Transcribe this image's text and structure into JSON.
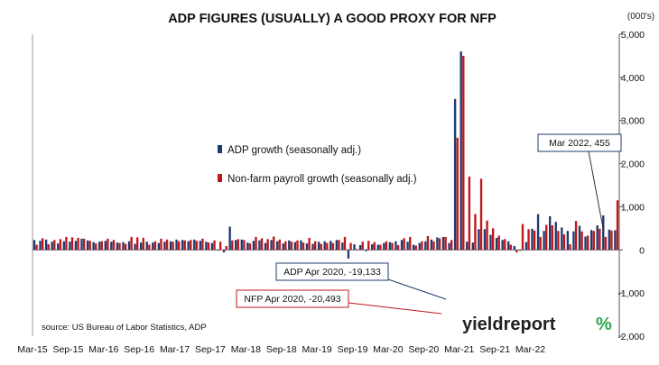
{
  "chart_data": {
    "type": "bar",
    "title": "ADP FIGURES (USUALLY) A GOOD PROXY FOR NFP",
    "y_unit_label": "(000's)",
    "ylim": [
      -2000,
      5000
    ],
    "y_ticks": [
      "-2,000",
      "-1,000",
      "0",
      "1,000",
      "2,000",
      "3,000",
      "4,000",
      "5,000"
    ],
    "y_tick_values": [
      -2000,
      -1000,
      0,
      1000,
      2000,
      3000,
      4000,
      5000
    ],
    "x_tick_labels": [
      "Mar-15",
      "Sep-15",
      "Mar-16",
      "Sep-16",
      "Mar-17",
      "Sep-17",
      "Mar-18",
      "Sep-18",
      "Mar-19",
      "Sep-19",
      "Mar-20",
      "Sep-20",
      "Mar-21",
      "Sep-21",
      "Mar-22"
    ],
    "grid": false,
    "legend_placement": "center-left",
    "colors": {
      "adp": "#1f3a6e",
      "nfp": "#c0161b"
    },
    "series": [
      {
        "name": "ADP growth (seasonally adj.)",
        "values": [
          230,
          210,
          240,
          190,
          150,
          200,
          190,
          210,
          260,
          220,
          180,
          190,
          210,
          190,
          170,
          180,
          200,
          140,
          170,
          190,
          170,
          160,
          190,
          200,
          240,
          230,
          200,
          240,
          210,
          190,
          160,
          -10,
          -60,
          540,
          230,
          240,
          170,
          210,
          220,
          160,
          230,
          200,
          150,
          220,
          180,
          220,
          150,
          140,
          190,
          200,
          210,
          230,
          170,
          -200,
          130,
          110,
          -30,
          130,
          120,
          160,
          180,
          200,
          230,
          190,
          120,
          160,
          200,
          240,
          290,
          300,
          160,
          3500,
          4600,
          190,
          170,
          480,
          480,
          350,
          280,
          230,
          200,
          90,
          -20,
          180,
          490,
          830,
          440,
          780,
          650,
          520,
          440,
          430,
          560,
          310,
          460,
          570,
          800,
          470,
          455
        ]
      },
      {
        "name": "Non-farm payroll growth (seasonally adj.)",
        "values": [
          120,
          270,
          130,
          230,
          250,
          300,
          290,
          280,
          260,
          210,
          150,
          200,
          260,
          230,
          160,
          140,
          300,
          290,
          280,
          120,
          200,
          260,
          240,
          190,
          200,
          220,
          230,
          210,
          260,
          170,
          220,
          190,
          90,
          220,
          250,
          230,
          150,
          300,
          270,
          250,
          310,
          240,
          200,
          190,
          220,
          170,
          280,
          200,
          140,
          160,
          160,
          230,
          300,
          160,
          20,
          190,
          210,
          180,
          120,
          200,
          160,
          110,
          270,
          300,
          100,
          200,
          320,
          200,
          270,
          300,
          230,
          2600,
          4500,
          1700,
          830,
          1650,
          680,
          500,
          330,
          250,
          120,
          -60,
          600,
          480,
          450,
          300,
          580,
          570,
          440,
          360,
          130,
          670,
          430,
          330,
          440,
          490,
          300,
          450,
          1150
        ]
      }
    ]
  },
  "legend": {
    "adp_label": "ADP growth (seasonally adj.)",
    "nfp_label": "Non-farm payroll growth (seasonally adj.)"
  },
  "annotations": {
    "mar22": "Mar 2022, 455",
    "adp_apr20": "ADP Apr 2020, -19,133",
    "nfp_apr20": "NFP Apr 2020, -20,493"
  },
  "source": "source: US Bureau of Labor Statistics, ADP",
  "logo": {
    "text_dark": "yieldreport",
    "symbol": "%"
  }
}
